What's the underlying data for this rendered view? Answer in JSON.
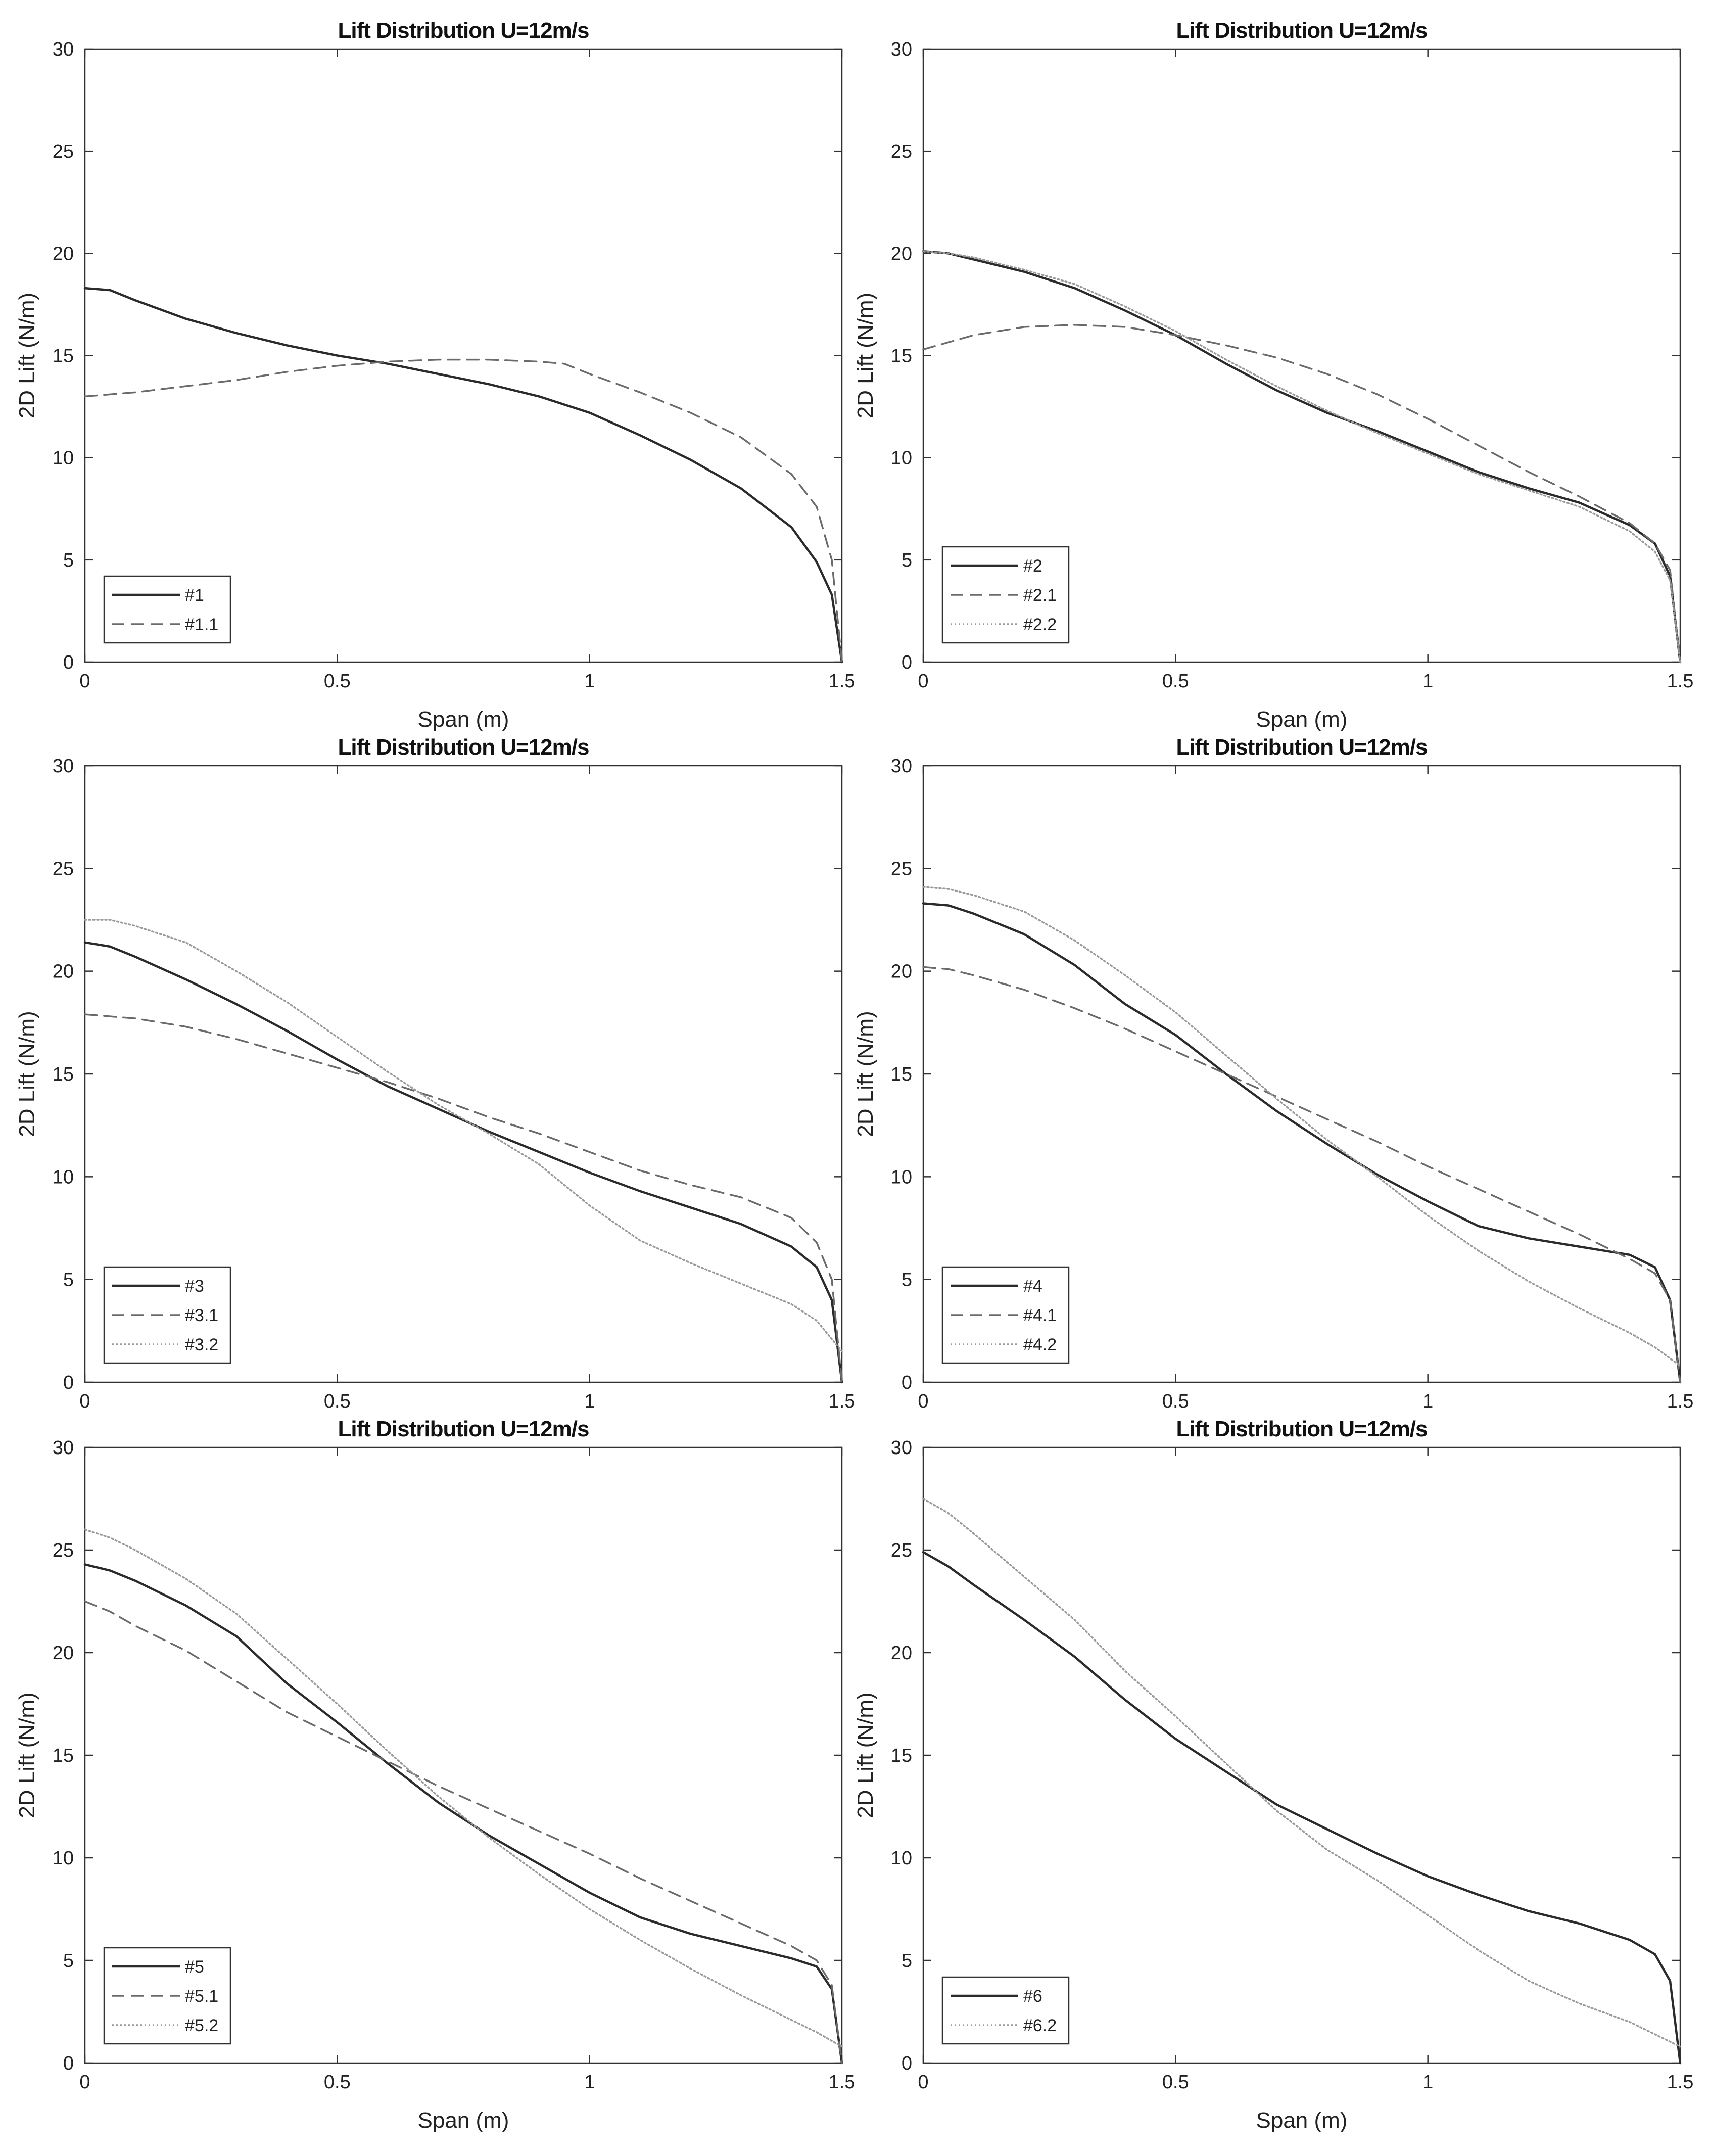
{
  "chart_data": [
    {
      "type": "line",
      "title": "Lift Distribution U=12m/s",
      "xlabel": "Span (m)",
      "ylabel": "2D Lift (N/m)",
      "xlim": [
        0,
        1.5
      ],
      "ylim": [
        0,
        30
      ],
      "xticks": [
        "0",
        "0.5",
        "1",
        "1.5"
      ],
      "yticks": [
        "0",
        "5",
        "10",
        "15",
        "20",
        "25",
        "30"
      ],
      "grid": false,
      "legend_position": "bottom-left",
      "series": [
        {
          "name": "#1",
          "style": "solid",
          "x": [
            0,
            0.05,
            0.1,
            0.2,
            0.3,
            0.4,
            0.5,
            0.6,
            0.7,
            0.8,
            0.9,
            1.0,
            1.1,
            1.2,
            1.3,
            1.4,
            1.45,
            1.48,
            1.5
          ],
          "y": [
            18.3,
            18.2,
            17.7,
            16.8,
            16.1,
            15.5,
            15.0,
            14.6,
            14.1,
            13.6,
            13.0,
            12.2,
            11.1,
            9.9,
            8.5,
            6.6,
            4.9,
            3.3,
            0
          ]
        },
        {
          "name": "#1.1",
          "style": "dashed",
          "x": [
            0,
            0.1,
            0.2,
            0.3,
            0.4,
            0.5,
            0.6,
            0.7,
            0.8,
            0.9,
            0.95,
            1.0,
            1.1,
            1.2,
            1.3,
            1.4,
            1.45,
            1.48,
            1.5
          ],
          "y": [
            13.0,
            13.2,
            13.5,
            13.8,
            14.2,
            14.5,
            14.7,
            14.8,
            14.8,
            14.7,
            14.6,
            14.1,
            13.2,
            12.2,
            11.0,
            9.2,
            7.6,
            5.0,
            0
          ]
        }
      ]
    },
    {
      "type": "line",
      "title": "Lift Distribution U=12m/s",
      "xlabel": "Span (m)",
      "ylabel": "2D Lift (N/m)",
      "xlim": [
        0,
        1.5
      ],
      "ylim": [
        0,
        30
      ],
      "xticks": [
        "0",
        "0.5",
        "1",
        "1.5"
      ],
      "yticks": [
        "0",
        "5",
        "10",
        "15",
        "20",
        "25",
        "30"
      ],
      "grid": false,
      "legend_position": "bottom-left",
      "series": [
        {
          "name": "#2",
          "style": "solid",
          "x": [
            0,
            0.05,
            0.1,
            0.2,
            0.3,
            0.4,
            0.5,
            0.6,
            0.7,
            0.8,
            0.9,
            1.0,
            1.1,
            1.2,
            1.3,
            1.4,
            1.45,
            1.48,
            1.5
          ],
          "y": [
            20.1,
            20.0,
            19.7,
            19.1,
            18.3,
            17.2,
            16.0,
            14.6,
            13.3,
            12.2,
            11.3,
            10.3,
            9.3,
            8.5,
            7.8,
            6.7,
            5.8,
            4.2,
            0
          ]
        },
        {
          "name": "#2.1",
          "style": "dashed",
          "x": [
            0,
            0.1,
            0.2,
            0.3,
            0.4,
            0.5,
            0.6,
            0.7,
            0.8,
            0.9,
            1.0,
            1.1,
            1.2,
            1.3,
            1.4,
            1.45,
            1.48,
            1.5
          ],
          "y": [
            15.3,
            16.0,
            16.4,
            16.5,
            16.4,
            16.0,
            15.5,
            14.9,
            14.1,
            13.1,
            11.9,
            10.6,
            9.3,
            8.1,
            6.8,
            5.8,
            4.5,
            0
          ]
        },
        {
          "name": "#2.2",
          "style": "dotted",
          "x": [
            0,
            0.05,
            0.1,
            0.2,
            0.3,
            0.4,
            0.5,
            0.6,
            0.7,
            0.8,
            0.9,
            1.0,
            1.1,
            1.2,
            1.3,
            1.4,
            1.45,
            1.48,
            1.5
          ],
          "y": [
            20.1,
            20.0,
            19.8,
            19.2,
            18.5,
            17.4,
            16.2,
            14.8,
            13.5,
            12.3,
            11.2,
            10.2,
            9.2,
            8.4,
            7.6,
            6.4,
            5.4,
            4.0,
            0
          ]
        }
      ]
    },
    {
      "type": "line",
      "title": "Lift Distribution U=12m/s",
      "xlabel": "",
      "ylabel": "2D Lift (N/m)",
      "xlim": [
        0,
        1.5
      ],
      "ylim": [
        0,
        30
      ],
      "xticks": [
        "0",
        "0.5",
        "1",
        "1.5"
      ],
      "yticks": [
        "0",
        "5",
        "10",
        "15",
        "20",
        "25",
        "30"
      ],
      "grid": false,
      "legend_position": "bottom-left",
      "series": [
        {
          "name": "#3",
          "style": "solid",
          "x": [
            0,
            0.05,
            0.1,
            0.2,
            0.3,
            0.4,
            0.5,
            0.6,
            0.7,
            0.8,
            0.9,
            1.0,
            1.1,
            1.2,
            1.3,
            1.4,
            1.45,
            1.48,
            1.5
          ],
          "y": [
            21.4,
            21.2,
            20.7,
            19.6,
            18.4,
            17.1,
            15.7,
            14.4,
            13.3,
            12.2,
            11.2,
            10.2,
            9.3,
            8.5,
            7.7,
            6.6,
            5.6,
            4.0,
            0
          ]
        },
        {
          "name": "#3.1",
          "style": "dashed",
          "x": [
            0,
            0.1,
            0.2,
            0.3,
            0.4,
            0.5,
            0.6,
            0.7,
            0.8,
            0.9,
            1.0,
            1.1,
            1.2,
            1.3,
            1.4,
            1.45,
            1.48,
            1.5
          ],
          "y": [
            17.9,
            17.7,
            17.3,
            16.7,
            16.0,
            15.3,
            14.6,
            13.8,
            12.9,
            12.1,
            11.2,
            10.3,
            9.6,
            9.0,
            8.0,
            6.8,
            5.0,
            0
          ]
        },
        {
          "name": "#3.2",
          "style": "dotted",
          "x": [
            0,
            0.05,
            0.1,
            0.2,
            0.3,
            0.4,
            0.5,
            0.6,
            0.7,
            0.8,
            0.9,
            1.0,
            1.1,
            1.2,
            1.3,
            1.4,
            1.45,
            1.5
          ],
          "y": [
            22.5,
            22.5,
            22.2,
            21.4,
            20.0,
            18.5,
            16.8,
            15.1,
            13.5,
            12.1,
            10.6,
            8.6,
            6.9,
            5.8,
            4.8,
            3.8,
            3.0,
            1.5
          ]
        }
      ]
    },
    {
      "type": "line",
      "title": "Lift Distribution U=12m/s",
      "xlabel": "",
      "ylabel": "2D Lift (N/m)",
      "xlim": [
        0,
        1.5
      ],
      "ylim": [
        0,
        30
      ],
      "xticks": [
        "0",
        "0.5",
        "1",
        "1.5"
      ],
      "yticks": [
        "0",
        "5",
        "10",
        "15",
        "20",
        "25",
        "30"
      ],
      "grid": false,
      "legend_position": "bottom-left",
      "series": [
        {
          "name": "#4",
          "style": "solid",
          "x": [
            0,
            0.05,
            0.1,
            0.2,
            0.3,
            0.4,
            0.5,
            0.6,
            0.7,
            0.8,
            0.9,
            1.0,
            1.1,
            1.2,
            1.3,
            1.4,
            1.45,
            1.48,
            1.5
          ],
          "y": [
            23.3,
            23.2,
            22.8,
            21.8,
            20.3,
            18.4,
            16.9,
            15.0,
            13.2,
            11.6,
            10.1,
            8.8,
            7.6,
            7.0,
            6.6,
            6.2,
            5.6,
            4.0,
            0
          ]
        },
        {
          "name": "#4.1",
          "style": "dashed",
          "x": [
            0,
            0.05,
            0.1,
            0.2,
            0.3,
            0.4,
            0.5,
            0.6,
            0.7,
            0.8,
            0.9,
            1.0,
            1.1,
            1.2,
            1.3,
            1.4,
            1.45,
            1.48,
            1.5
          ],
          "y": [
            20.2,
            20.1,
            19.8,
            19.1,
            18.2,
            17.2,
            16.1,
            15.0,
            13.9,
            12.8,
            11.7,
            10.5,
            9.4,
            8.3,
            7.2,
            6.0,
            5.3,
            4.0,
            0
          ]
        },
        {
          "name": "#4.2",
          "style": "dotted",
          "x": [
            0,
            0.05,
            0.1,
            0.2,
            0.3,
            0.4,
            0.5,
            0.6,
            0.7,
            0.8,
            0.9,
            1.0,
            1.1,
            1.2,
            1.3,
            1.4,
            1.45,
            1.5
          ],
          "y": [
            24.1,
            24.0,
            23.7,
            22.9,
            21.5,
            19.8,
            18.0,
            15.9,
            13.8,
            11.8,
            10.0,
            8.1,
            6.4,
            4.9,
            3.6,
            2.4,
            1.7,
            0.8
          ]
        }
      ]
    },
    {
      "type": "line",
      "title": "Lift Distribution U=12m/s",
      "xlabel": "Span (m)",
      "ylabel": "2D Lift (N/m)",
      "xlim": [
        0,
        1.5
      ],
      "ylim": [
        0,
        30
      ],
      "xticks": [
        "0",
        "0.5",
        "1",
        "1.5"
      ],
      "yticks": [
        "0",
        "5",
        "10",
        "15",
        "20",
        "25",
        "30"
      ],
      "grid": false,
      "legend_position": "bottom-left",
      "series": [
        {
          "name": "#5",
          "style": "solid",
          "x": [
            0,
            0.05,
            0.1,
            0.2,
            0.3,
            0.4,
            0.5,
            0.6,
            0.7,
            0.8,
            0.9,
            1.0,
            1.1,
            1.2,
            1.3,
            1.4,
            1.45,
            1.48,
            1.5
          ],
          "y": [
            24.3,
            24.0,
            23.5,
            22.3,
            20.8,
            18.5,
            16.6,
            14.6,
            12.7,
            11.1,
            9.7,
            8.3,
            7.1,
            6.3,
            5.7,
            5.1,
            4.7,
            3.6,
            0
          ]
        },
        {
          "name": "#5.1",
          "style": "dashed",
          "x": [
            0,
            0.05,
            0.1,
            0.2,
            0.3,
            0.4,
            0.5,
            0.6,
            0.7,
            0.8,
            0.9,
            1.0,
            1.1,
            1.2,
            1.3,
            1.4,
            1.45,
            1.48,
            1.5
          ],
          "y": [
            22.5,
            22.0,
            21.3,
            20.1,
            18.6,
            17.1,
            15.9,
            14.7,
            13.5,
            12.4,
            11.3,
            10.2,
            9.0,
            7.9,
            6.8,
            5.7,
            5.0,
            3.8,
            0
          ]
        },
        {
          "name": "#5.2",
          "style": "dotted",
          "x": [
            0,
            0.05,
            0.1,
            0.2,
            0.3,
            0.4,
            0.5,
            0.6,
            0.7,
            0.8,
            0.9,
            1.0,
            1.1,
            1.2,
            1.3,
            1.4,
            1.45,
            1.5
          ],
          "y": [
            26.0,
            25.6,
            25.0,
            23.6,
            21.9,
            19.7,
            17.5,
            15.2,
            13.0,
            11.0,
            9.2,
            7.5,
            6.0,
            4.6,
            3.3,
            2.1,
            1.5,
            0.8
          ]
        }
      ]
    },
    {
      "type": "line",
      "title": "Lift Distribution U=12m/s",
      "xlabel": "Span (m)",
      "ylabel": "2D Lift (N/m)",
      "xlim": [
        0,
        1.5
      ],
      "ylim": [
        0,
        30
      ],
      "xticks": [
        "0",
        "0.5",
        "1",
        "1.5"
      ],
      "yticks": [
        "0",
        "5",
        "10",
        "15",
        "20",
        "25",
        "30"
      ],
      "grid": false,
      "legend_position": "bottom-left",
      "series": [
        {
          "name": "#6",
          "style": "solid",
          "x": [
            0,
            0.05,
            0.1,
            0.2,
            0.3,
            0.4,
            0.5,
            0.6,
            0.7,
            0.8,
            0.9,
            1.0,
            1.1,
            1.2,
            1.3,
            1.4,
            1.45,
            1.48,
            1.5
          ],
          "y": [
            24.9,
            24.2,
            23.3,
            21.6,
            19.8,
            17.7,
            15.8,
            14.2,
            12.6,
            11.4,
            10.2,
            9.1,
            8.2,
            7.4,
            6.8,
            6.0,
            5.3,
            4.0,
            0
          ]
        },
        {
          "name": "#6.2",
          "style": "dotted",
          "x": [
            0,
            0.05,
            0.1,
            0.2,
            0.3,
            0.4,
            0.5,
            0.6,
            0.7,
            0.8,
            0.9,
            1.0,
            1.1,
            1.2,
            1.3,
            1.4,
            1.45,
            1.5
          ],
          "y": [
            27.5,
            26.8,
            25.8,
            23.7,
            21.6,
            19.1,
            16.9,
            14.6,
            12.3,
            10.4,
            8.9,
            7.2,
            5.5,
            4.0,
            2.9,
            2.0,
            1.4,
            0.8
          ]
        }
      ]
    }
  ]
}
